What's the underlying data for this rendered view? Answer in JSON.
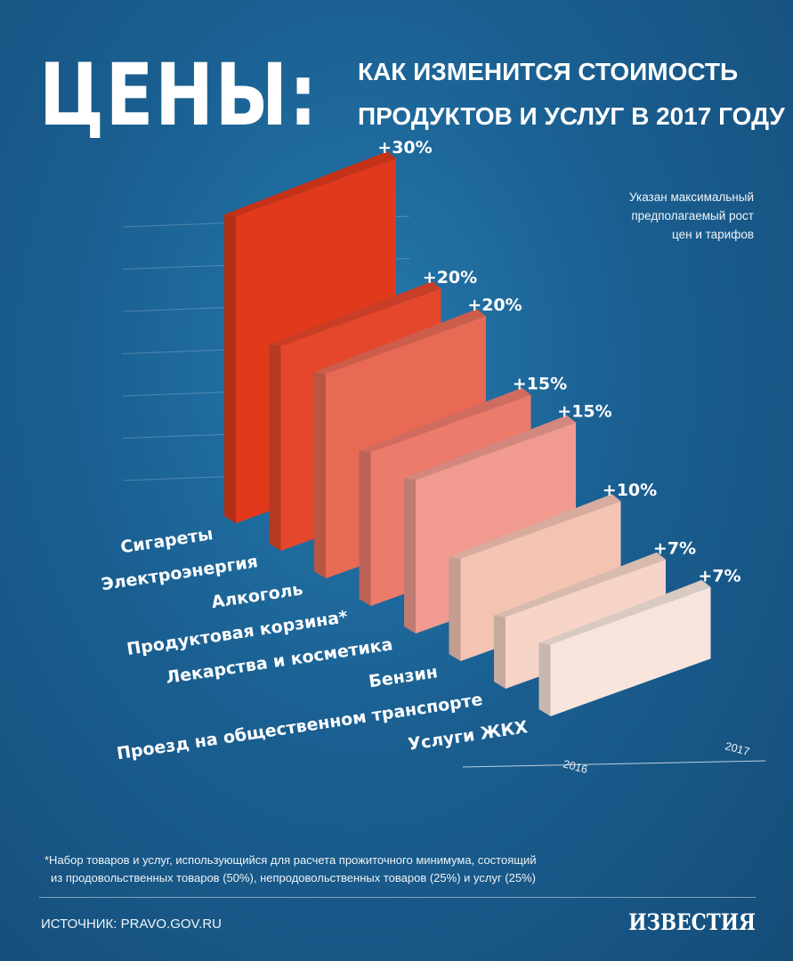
{
  "header": {
    "title": "ЦЕНЫ:",
    "subtitle_line1": "КАК ИЗМЕНИТСЯ СТОИМОСТЬ",
    "subtitle_line2": "ПРОДУКТОВ И УСЛУГ В 2017 ГОДУ"
  },
  "note": {
    "line1": "Указан максимальный",
    "line2": "предполагаемый рост",
    "line3": "цен и тарифов"
  },
  "chart_data": {
    "type": "bar",
    "categories": [
      "Сигареты",
      "Электроэнергия",
      "Алкоголь",
      "Продуктовая корзина*",
      "Лекарства и косметика",
      "Бензин",
      "Проезд на общественном транспорте",
      "Услуги ЖКХ"
    ],
    "values": [
      30,
      20,
      20,
      15,
      15,
      10,
      7,
      7
    ],
    "value_labels": [
      "+30%",
      "+20%",
      "+20%",
      "+15%",
      "+15%",
      "+10%",
      "+7%",
      "+7%"
    ],
    "units": "%",
    "colors": [
      "#e1391b",
      "#e4472b",
      "#e86a55",
      "#ec7b6c",
      "#f09a90",
      "#f4c4b3",
      "#f6d4c7",
      "#f7e5dd"
    ],
    "x_axis_start_label": "2016",
    "x_axis_end_label": "2017",
    "grid": true,
    "legend": "none"
  },
  "footnote": {
    "line1": "*Набор товаров и услуг, использующийся для расчета прожиточного минимума, состоящий",
    "line2": "из продовольственных товаров (50%), непродовольственных товаров (25%) и услуг (25%)"
  },
  "footer": {
    "source": "ИСТОЧНИК: PRAVO.GOV.RU",
    "logo": "ИЗВЕСТИЯ"
  }
}
